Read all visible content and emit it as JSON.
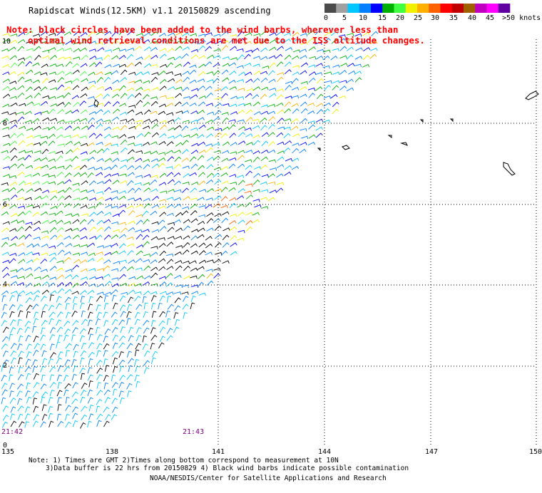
{
  "title": "Rapidscat Winds(12.5KM) v1.1 20150829 ascending",
  "note": {
    "line1": "Note: black circles have been added to the wind barbs, wherever less than",
    "line2": "optimal wind retrieval conditions are met due to the ISS altitude changes."
  },
  "legend": {
    "labels": [
      "0",
      "5",
      "10",
      "15",
      "20",
      "25",
      "30",
      "35",
      "40",
      "45",
      ">50 knots"
    ],
    "colors": [
      "#4a4a4a",
      "#a0a0a0",
      "#00c8ff",
      "#0080ff",
      "#0000ff",
      "#00b000",
      "#40ff40",
      "#f0f000",
      "#ffb000",
      "#ff6000",
      "#ff0000",
      "#c00000",
      "#a06000",
      "#c000c0",
      "#ff00ff",
      "#6000a0"
    ]
  },
  "axes": {
    "lon_labels": [
      "135",
      "138",
      "141",
      "144",
      "147",
      "150"
    ],
    "lat_labels": [
      "10",
      "8",
      "6",
      "4",
      "2",
      "0"
    ]
  },
  "time_labels": [
    "21:42",
    "21:43"
  ],
  "footer": {
    "line1": "Note: 1) Times are GMT 2)Times along bottom correspond to measurement at 10N",
    "line2": "3)Data buffer is 22 hrs from 20150829 4) Black wind barbs indicate possible contamination",
    "line3": "NOAA/NESDIS/Center for Satellite Applications and Research"
  },
  "colors": {
    "note_red": "#ff0000",
    "time_purple": "#800080",
    "grid": "#000000"
  }
}
